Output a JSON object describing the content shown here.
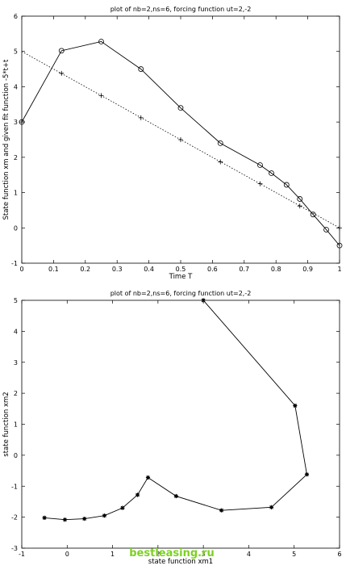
{
  "watermark": "bestleasing.ru",
  "chart_data": [
    {
      "type": "line",
      "title": "plot of nb=2,ns=6, forcing function ut=2,-2",
      "xlabel": "Time T",
      "ylabel": "State function xm and given fit function -5*t+t",
      "xlim": [
        0,
        1
      ],
      "ylim": [
        -1,
        6
      ],
      "xticks": [
        "0",
        "0.1",
        "0.2",
        "0.3",
        "0.4",
        "0.5",
        "0.6",
        "0.7",
        "0.8",
        "0.9",
        "1"
      ],
      "yticks": [
        "-1",
        "0",
        "1",
        "2",
        "3",
        "4",
        "5",
        "6"
      ],
      "grid": false,
      "series": [
        {
          "style": "solid line with circle markers",
          "x": [
            0,
            0.125,
            0.25,
            0.375,
            0.5,
            0.625,
            0.75,
            0.7857,
            0.8333,
            0.875,
            0.9167,
            0.9583,
            1.0
          ],
          "y": [
            3.0,
            5.02,
            5.28,
            4.5,
            3.4,
            2.4,
            1.78,
            1.55,
            1.22,
            0.82,
            0.38,
            -0.05,
            -0.5
          ]
        },
        {
          "style": "dotted line with plus markers",
          "x": [
            0,
            0.125,
            0.25,
            0.375,
            0.5,
            0.625,
            0.75,
            0.875,
            1.0
          ],
          "y": [
            3.0,
            4.38,
            3.75,
            3.12,
            2.5,
            1.87,
            1.25,
            0.62,
            0.0
          ],
          "fit_line": {
            "x": [
              0,
              1
            ],
            "y": [
              5,
              0
            ]
          }
        }
      ]
    },
    {
      "type": "line",
      "title": "plot of nb=2,ns=6, forcing function ut=2,-2",
      "xlabel": "state function xm1",
      "ylabel": "state function xm2",
      "xlim": [
        -1,
        6
      ],
      "ylim": [
        -3,
        5
      ],
      "xticks": [
        "-1",
        "0",
        "1",
        "2",
        "3",
        "4",
        "5",
        "6"
      ],
      "yticks": [
        "-3",
        "-2",
        "-1",
        "0",
        "1",
        "2",
        "3",
        "4",
        "5"
      ],
      "grid": false,
      "series": [
        {
          "style": "solid line with star markers",
          "x": [
            3.0,
            5.02,
            5.28,
            4.5,
            3.4,
            2.4,
            1.78,
            1.55,
            1.22,
            0.82,
            0.38,
            -0.05,
            -0.5
          ],
          "y": [
            5.0,
            1.6,
            -0.62,
            -1.68,
            -1.78,
            -1.32,
            -0.72,
            -1.28,
            -1.7,
            -1.95,
            -2.05,
            -2.08,
            -2.02
          ]
        }
      ]
    }
  ]
}
